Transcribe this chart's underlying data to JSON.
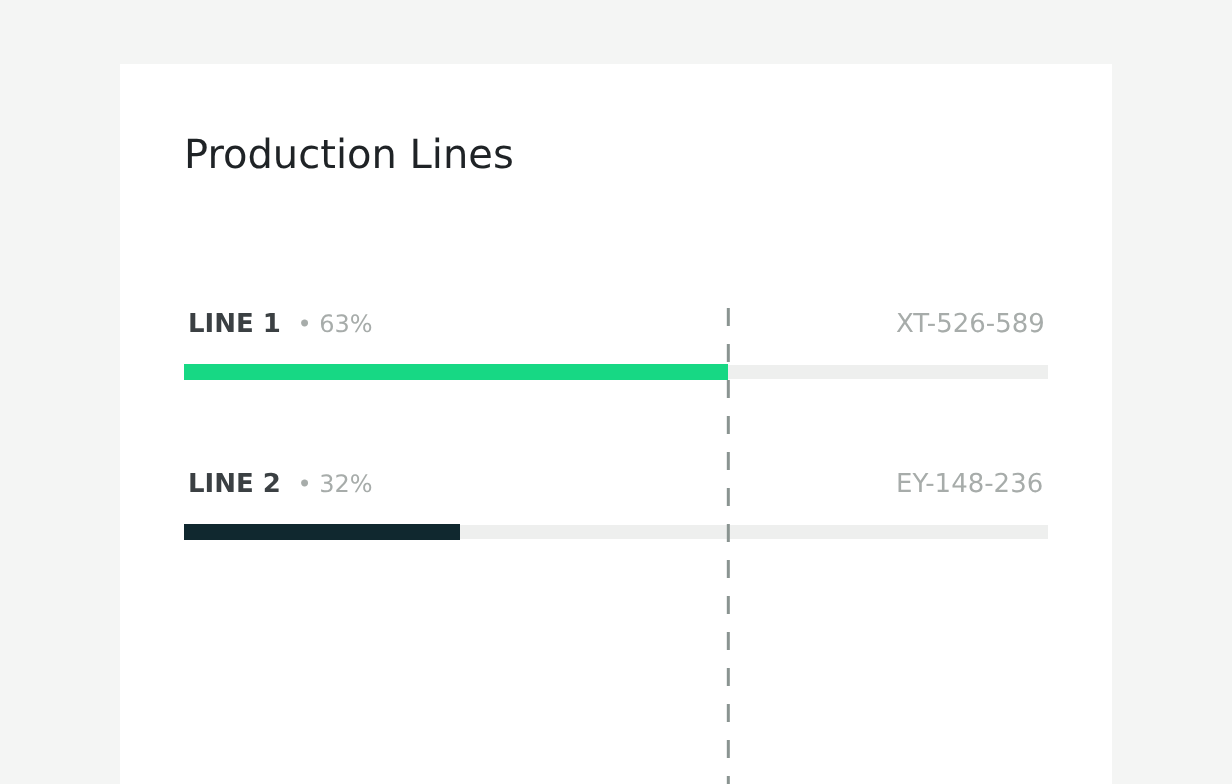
{
  "chart_data": {
    "type": "bar",
    "orientation": "horizontal",
    "title": "Production Lines",
    "categories": [
      "LINE 1",
      "LINE 2"
    ],
    "values": [
      63,
      32
    ],
    "colors": [
      "#17d884",
      "#10282f"
    ],
    "value_labels": [
      "• 63%",
      "• 32%"
    ],
    "annotations": [
      "XT-526-589",
      "EY-148-236"
    ],
    "ref_lines": [
      {
        "axis": "x",
        "value": 63,
        "color": "#8a9491",
        "line_style": "dashed"
      }
    ],
    "xlim": [
      0,
      100
    ],
    "tick_labels": false,
    "grid": false,
    "legend": false
  }
}
